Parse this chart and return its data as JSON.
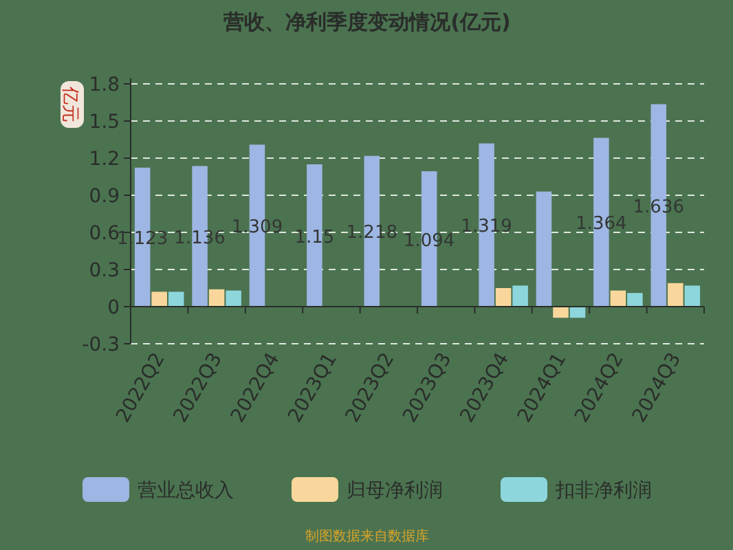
{
  "chart_data": {
    "type": "bar",
    "title": "营收、净利季度变动情况(亿元)",
    "ylabel": "亿元",
    "categories": [
      "2022Q2",
      "2022Q3",
      "2022Q4",
      "2023Q1",
      "2023Q2",
      "2023Q3",
      "2023Q4",
      "2024Q1",
      "2024Q2",
      "2024Q3"
    ],
    "series": [
      {
        "name": "营业总收入",
        "color": "#9db6e3",
        "values": [
          1.123,
          1.136,
          1.309,
          1.15,
          1.218,
          1.094,
          1.319,
          0.93,
          1.364,
          1.636
        ],
        "value_labels": [
          "1.123",
          "1.136",
          "1.309",
          "1.15",
          "1.218",
          "1.094",
          "1.319",
          null,
          "1.364",
          "1.636"
        ]
      },
      {
        "name": "归母净利润",
        "color": "#f9d79c",
        "values": [
          0.12,
          0.14,
          null,
          null,
          null,
          null,
          0.15,
          -0.09,
          0.13,
          0.19
        ]
      },
      {
        "name": "扣非净利润",
        "color": "#8dd6dc",
        "values": [
          0.12,
          0.13,
          null,
          null,
          null,
          null,
          0.17,
          -0.09,
          0.11,
          0.17
        ]
      }
    ],
    "ylim": [
      -0.3,
      1.8
    ],
    "yticks": [
      -0.3,
      0,
      0.3,
      0.6,
      0.9,
      1.2,
      1.5,
      1.8
    ],
    "grid": "y",
    "legend": "bottom",
    "annotations": [
      "制图数据来自数据库"
    ]
  }
}
